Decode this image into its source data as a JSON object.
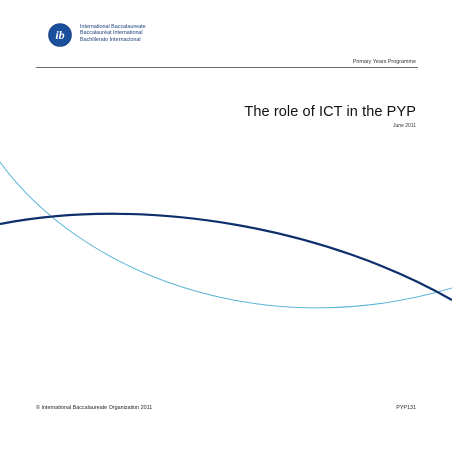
{
  "header": {
    "logo_icon": "ib-logo-icon",
    "logo_letters": "ib",
    "org_names": [
      "International Baccalaureate",
      "Baccalauréat International",
      "Bachillerato Internacional"
    ]
  },
  "programme": "Primary Years Programme",
  "title": "The role of ICT in the PYP",
  "date": "June 2011",
  "footer": {
    "copyright": "© International Baccalaureate Organization 2011",
    "code": "PYP131"
  },
  "colors": {
    "brand_blue": "#1a3f7a",
    "light_curve": "#5ab4d8",
    "dark_curve": "#0d2f6b"
  }
}
